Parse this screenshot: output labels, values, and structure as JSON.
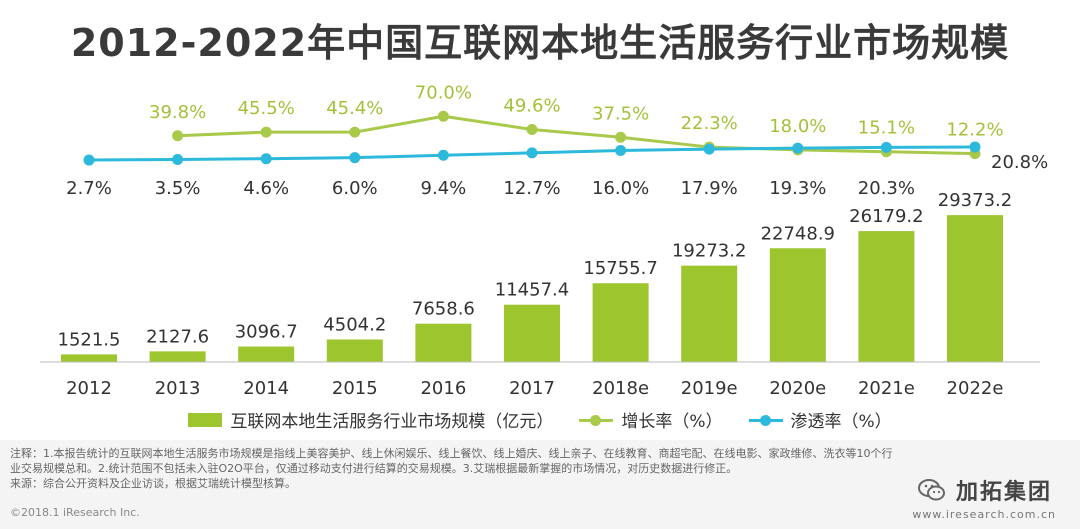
{
  "chart_data": {
    "type": "bar",
    "title": "2012-2022年中国互联网本地生活服务行业市场规模",
    "categories": [
      "2012",
      "2013",
      "2014",
      "2015",
      "2016",
      "2017",
      "2018e",
      "2019e",
      "2020e",
      "2021e",
      "2022e"
    ],
    "series": [
      {
        "name": "互联网本地生活服务行业市场规模（亿元）",
        "kind": "bar",
        "values": [
          1521.5,
          2127.6,
          3096.7,
          4504.2,
          7658.6,
          11457.4,
          15755.7,
          19273.2,
          22748.9,
          26179.2,
          29373.2
        ],
        "labels": [
          "1521.5",
          "2127.6",
          "3096.7",
          "4504.2",
          "7658.6",
          "11457.4",
          "15755.7",
          "19273.2",
          "22748.9",
          "26179.2",
          "29373.2"
        ]
      },
      {
        "name": "增长率（%）",
        "kind": "line",
        "values": [
          null,
          39.8,
          45.5,
          45.4,
          70.0,
          49.6,
          37.5,
          22.3,
          18.0,
          15.1,
          12.2
        ],
        "labels": [
          null,
          "39.8%",
          "45.5%",
          "45.4%",
          "70.0%",
          "49.6%",
          "37.5%",
          "22.3%",
          "18.0%",
          "15.1%",
          "12.2%"
        ]
      },
      {
        "name": "渗透率（%）",
        "kind": "line",
        "values": [
          2.7,
          3.5,
          4.6,
          6.0,
          9.4,
          12.7,
          16.0,
          17.9,
          19.3,
          20.3,
          20.8
        ],
        "labels": [
          "2.7%",
          "3.5%",
          "4.6%",
          "6.0%",
          "9.4%",
          "12.7%",
          "16.0%",
          "17.9%",
          "19.3%",
          "20.3%",
          "20.8%"
        ]
      }
    ],
    "ylim": [
      0,
      30000
    ],
    "xlabel": "",
    "ylabel": ""
  },
  "colors": {
    "bar": "#9cc52e",
    "growth": "#a8c94a",
    "growth_label": "#a3c13a",
    "penetration": "#2cb9dc",
    "text": "#333333"
  },
  "legend": {
    "bar_label": "互联网本地生活服务行业市场规模（亿元）",
    "growth_label": "增长率（%）",
    "penetration_label": "渗透率（%）"
  },
  "footnote": {
    "note_line1": "注释：1.本报告统计的互联网本地生活服务市场规模是指线上美容美护、线上休闲娱乐、线上餐饮、线上婚庆、线上亲子、在线教育、商超宅配、在线电影、家政维修、洗衣等10个行",
    "note_line2": "业交易规模总和。2.统计范围不包括未入驻O2O平台，仅通过移动支付进行结算的交易规模。3.艾瑞根据最新掌握的市场情况，对历史数据进行修正。",
    "source": "来源：综合公开资料及企业访谈，根据艾瑞统计模型核算。",
    "year_org": "©2018.1 iResearch Inc."
  },
  "brand": {
    "name": "加拓集团",
    "icon": "wechat-icon"
  },
  "site": "www.iresearch.com.cn"
}
